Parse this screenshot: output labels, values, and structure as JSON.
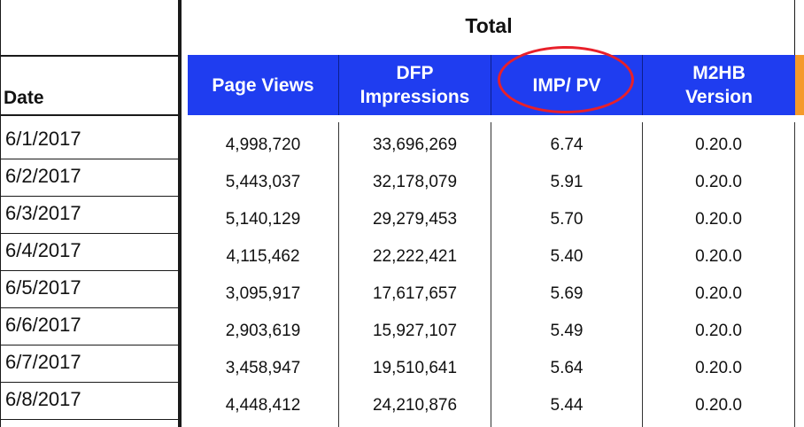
{
  "group_header": "Total",
  "date_header": "Date",
  "columns": {
    "page_views": "Page Views",
    "dfp_impressions_line1": "DFP",
    "dfp_impressions_line2": "Impressions",
    "imp_pv": "IMP/ PV",
    "m2hb_line1": "M2HB",
    "m2hb_line2": "Version"
  },
  "highlight": {
    "target": "IMP/ PV",
    "color": "#e8202a"
  },
  "colors": {
    "header_bg": "#1f3df0",
    "header_text": "#ffffff",
    "edge_accent": "#f59a2a"
  },
  "rows": [
    {
      "date": "6/1/2017",
      "page_views": "4,998,720",
      "dfp": "33,696,269",
      "imp_pv": "6.74",
      "m2hb": "0.20.0"
    },
    {
      "date": "6/2/2017",
      "page_views": "5,443,037",
      "dfp": "32,178,079",
      "imp_pv": "5.91",
      "m2hb": "0.20.0"
    },
    {
      "date": "6/3/2017",
      "page_views": "5,140,129",
      "dfp": "29,279,453",
      "imp_pv": "5.70",
      "m2hb": "0.20.0"
    },
    {
      "date": "6/4/2017",
      "page_views": "4,115,462",
      "dfp": "22,222,421",
      "imp_pv": "5.40",
      "m2hb": "0.20.0"
    },
    {
      "date": "6/5/2017",
      "page_views": "3,095,917",
      "dfp": "17,617,657",
      "imp_pv": "5.69",
      "m2hb": "0.20.0"
    },
    {
      "date": "6/6/2017",
      "page_views": "2,903,619",
      "dfp": "15,927,107",
      "imp_pv": "5.49",
      "m2hb": "0.20.0"
    },
    {
      "date": "6/7/2017",
      "page_views": "3,458,947",
      "dfp": "19,510,641",
      "imp_pv": "5.64",
      "m2hb": "0.20.0"
    },
    {
      "date": "6/8/2017",
      "page_views": "4,448,412",
      "dfp": "24,210,876",
      "imp_pv": "5.44",
      "m2hb": "0.20.0"
    }
  ]
}
